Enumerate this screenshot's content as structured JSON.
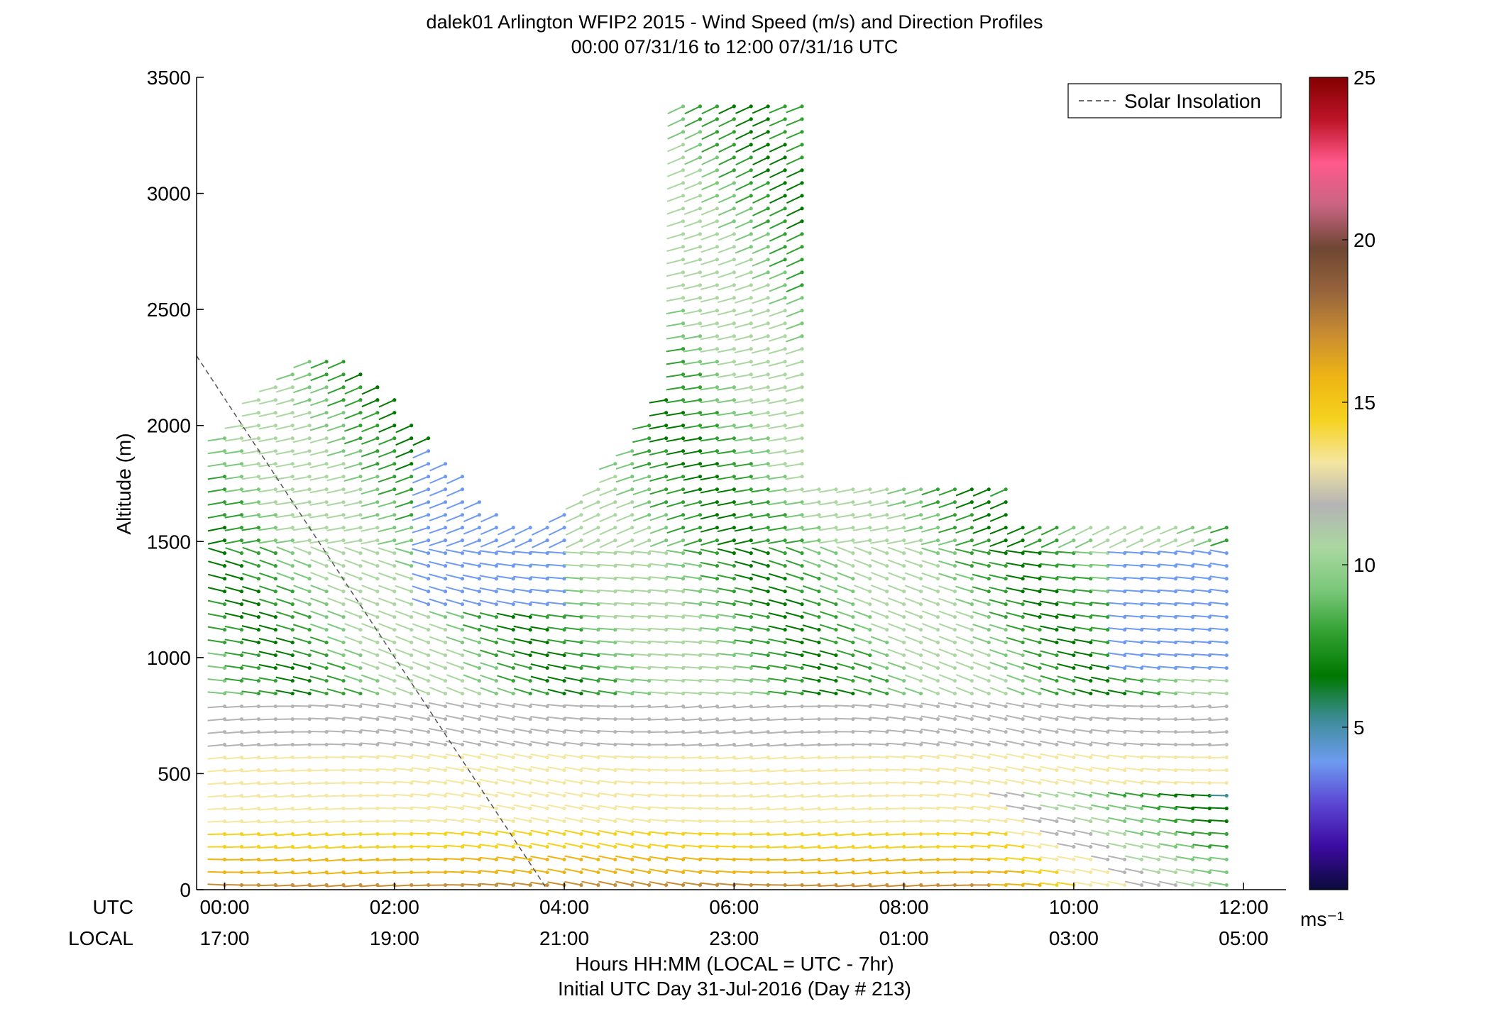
{
  "chart_data": {
    "type": "scatter",
    "title": "dalek01 Arlington WFIP2 2015 - Wind Speed (m/s) and Direction Profiles",
    "subtitle": "00:00 07/31/16 to 12:00 07/31/16  UTC",
    "ylabel": "Altitude (m)",
    "xlabel": "Hours HH:MM  (LOCAL = UTC - 7hr)",
    "xlabel2": "Initial UTC Day 31-Jul-2016 (Day # 213)",
    "ylim": [
      0,
      3500
    ],
    "xlim_hours_utc": [
      -0.33,
      12.5
    ],
    "y_ticks": [
      "0",
      "500",
      "1000",
      "1500",
      "2000",
      "2500",
      "3000",
      "3500"
    ],
    "x_row_labels": [
      "UTC",
      "LOCAL"
    ],
    "x_ticks_utc": [
      "00:00",
      "02:00",
      "04:00",
      "06:00",
      "08:00",
      "10:00",
      "12:00"
    ],
    "x_ticks_local": [
      "17:00",
      "19:00",
      "21:00",
      "23:00",
      "01:00",
      "03:00",
      "05:00"
    ],
    "legend": {
      "label": "Solar Insolation",
      "placement": "top-right"
    },
    "grid": false,
    "colorbar": {
      "range": [
        0,
        25
      ],
      "ticks": [
        "5",
        "10",
        "15",
        "20",
        "25"
      ],
      "unit": "ms⁻¹",
      "colors": [
        "#0a0a3a",
        "#3c0aa0",
        "#5a46d2",
        "#6e9bf0",
        "#3c8c96",
        "#007800",
        "#30a030",
        "#7ac87a",
        "#aad7a0",
        "#b4b4b4",
        "#f5e6a0",
        "#f5d21e",
        "#eeb414",
        "#c88c32",
        "#96643c",
        "#6e4632",
        "#c86482",
        "#ff5a8c",
        "#be1428",
        "#820000"
      ]
    },
    "solar_insolation": {
      "x_hours_utc": [
        -0.33,
        3.8
      ],
      "y_m": [
        2300,
        0
      ]
    },
    "profile_time_step_hours": 0.2,
    "profile_altitude_step_m": 55
  }
}
